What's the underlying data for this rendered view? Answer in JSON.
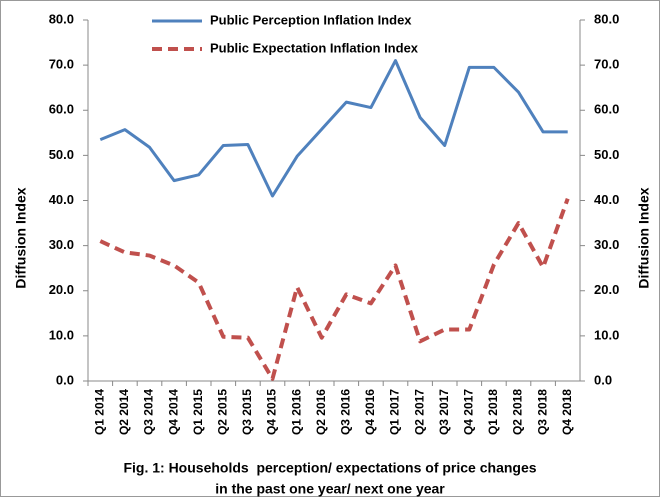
{
  "chart_data": {
    "type": "line",
    "caption": [
      "Fig. 1: Households  perception/ expectations of price changes",
      "in the past one year/ next one year"
    ],
    "ylabel": "Diffusion Index",
    "y2label": "Diffusion Index",
    "categories": [
      "Q1 2014",
      "Q2 2014",
      "Q3 2014",
      "Q4 2014",
      "Q1 2015",
      "Q2 2015",
      "Q3 2015",
      "Q4 2015",
      "Q1 2016",
      "Q2 2016",
      "Q3 2016",
      "Q4 2016",
      "Q1 2017",
      "Q2 2017",
      "Q3 2017",
      "Q4 2017",
      "Q1 2018",
      "Q2 2018",
      "Q3 2018",
      "Q4 2018"
    ],
    "series": [
      {
        "name": "Public Perception Inflation Index",
        "color": "#4f81bd",
        "dashed": false,
        "values": [
          53.5,
          55.7,
          51.8,
          44.4,
          45.7,
          52.2,
          52.4,
          41.0,
          49.8,
          55.8,
          61.8,
          60.6,
          71.0,
          58.4,
          52.2,
          69.5,
          69.5,
          64.0,
          55.2,
          55.2
        ]
      },
      {
        "name": "Public Expectation Inflation Index",
        "color": "#c0504d",
        "dashed": true,
        "values": [
          31.0,
          28.5,
          27.8,
          25.6,
          21.8,
          9.8,
          9.6,
          0.5,
          20.8,
          9.6,
          19.2,
          17.2,
          25.6,
          8.8,
          11.4,
          11.4,
          25.8,
          35.0,
          25.2,
          40.4
        ]
      }
    ],
    "ylim": [
      0,
      80
    ],
    "yticks": [
      {
        "value": 0,
        "label": "0.0"
      },
      {
        "value": 10,
        "label": "10.0"
      },
      {
        "value": 20,
        "label": "20.0"
      },
      {
        "value": 30,
        "label": "30.0"
      },
      {
        "value": 40,
        "label": "40.0"
      },
      {
        "value": 50,
        "label": "50.0"
      },
      {
        "value": 60,
        "label": "60.0"
      },
      {
        "value": 70,
        "label": "70.0"
      },
      {
        "value": 80,
        "label": "80.0"
      }
    ],
    "y2lim": [
      0,
      80
    ],
    "y2ticks": [
      {
        "value": 0,
        "label": "0.0"
      },
      {
        "value": 10,
        "label": "10.0"
      },
      {
        "value": 20,
        "label": "20.0"
      },
      {
        "value": 30,
        "label": "30.0"
      },
      {
        "value": 40,
        "label": "40.0"
      },
      {
        "value": 50,
        "label": "50.0"
      },
      {
        "value": 60,
        "label": "60.0"
      },
      {
        "value": 70,
        "label": "70.0"
      },
      {
        "value": 80,
        "label": "80.0"
      }
    ],
    "grid": false
  }
}
